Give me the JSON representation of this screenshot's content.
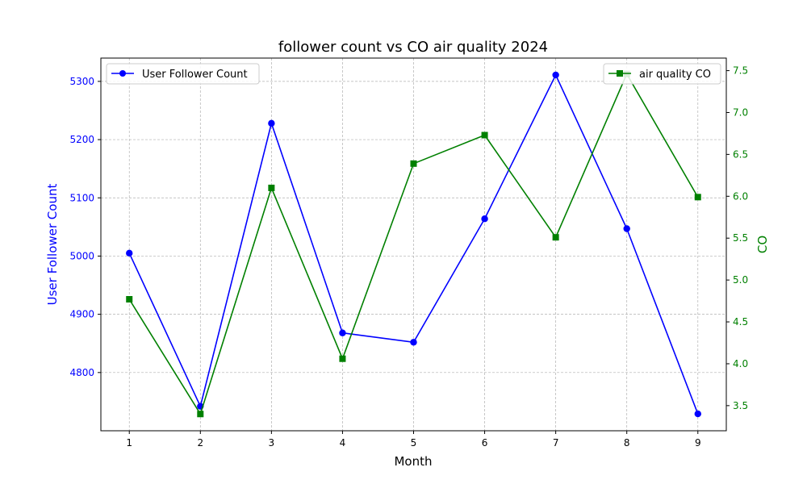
{
  "chart_data": {
    "type": "line",
    "title": "follower count vs CO air quality 2024",
    "xlabel": "Month",
    "x": [
      1,
      2,
      3,
      4,
      5,
      6,
      7,
      8,
      9
    ],
    "x_ticks": [
      "1",
      "2",
      "3",
      "4",
      "5",
      "6",
      "7",
      "8",
      "9"
    ],
    "grid": true,
    "axes": {
      "left": {
        "label": "User Follower Count",
        "color": "#0000ff",
        "ylim": [
          4700,
          5340
        ],
        "ticks": [
          4800,
          4900,
          5000,
          5100,
          5200,
          5300
        ],
        "tick_labels": [
          "4800",
          "4900",
          "5000",
          "5100",
          "5200",
          "5300"
        ]
      },
      "right": {
        "label": "CO",
        "color": "#008000",
        "ylim": [
          3.2,
          7.65
        ],
        "ticks": [
          3.5,
          4.0,
          4.5,
          5.0,
          5.5,
          6.0,
          6.5,
          7.0,
          7.5
        ],
        "tick_labels": [
          "3.5",
          "4.0",
          "4.5",
          "5.0",
          "5.5",
          "6.0",
          "6.5",
          "7.0",
          "7.5"
        ]
      }
    },
    "series": [
      {
        "name": "User Follower Count",
        "axis": "left",
        "color": "#0000ff",
        "marker": "circle",
        "values": [
          5005,
          4742,
          5228,
          4868,
          4852,
          5064,
          5311,
          5047,
          4729
        ]
      },
      {
        "name": "air quality CO",
        "axis": "right",
        "color": "#008000",
        "marker": "square",
        "values": [
          4.77,
          3.4,
          6.1,
          4.06,
          6.39,
          6.73,
          5.51,
          7.46,
          5.99
        ]
      }
    ],
    "legends": [
      {
        "placement": "upper-left",
        "series": [
          "User Follower Count"
        ]
      },
      {
        "placement": "upper-right",
        "series": [
          "air quality CO"
        ]
      }
    ]
  }
}
